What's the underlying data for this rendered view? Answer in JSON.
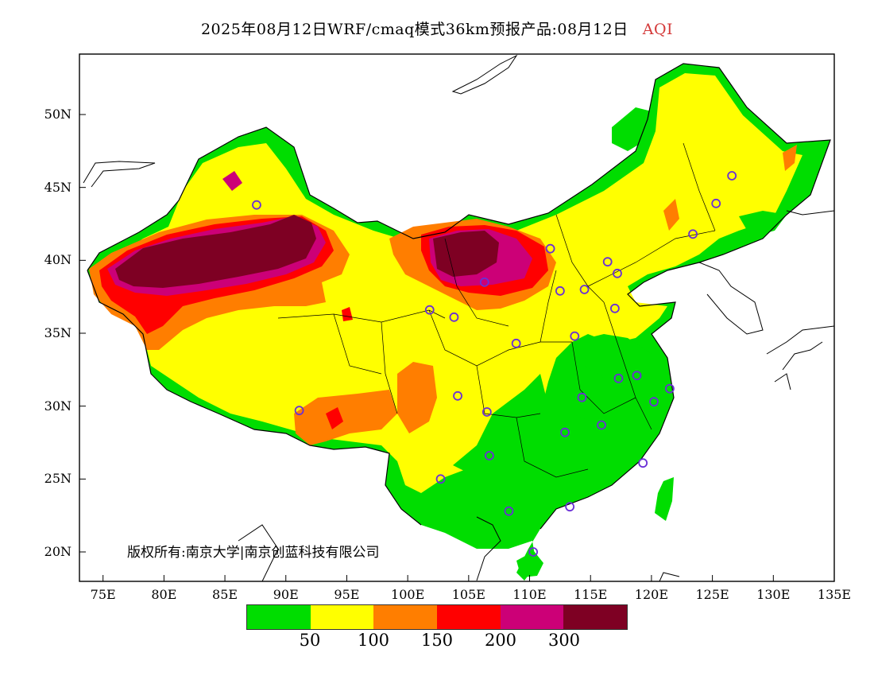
{
  "title": {
    "main": "2025年08月12日WRF/cmaq模式36km预报产品:08月12日",
    "variable": "AQI"
  },
  "copyright": "版权所有:南京大学|南京创蓝科技有限公司",
  "axes": {
    "lon_ticks": [
      "75E",
      "80E",
      "85E",
      "90E",
      "95E",
      "100E",
      "105E",
      "110E",
      "115E",
      "120E",
      "125E",
      "130E",
      "135E"
    ],
    "lat_ticks": [
      "50N",
      "45N",
      "40N",
      "35N",
      "30N",
      "25N",
      "20N"
    ],
    "lon_range": [
      73,
      135
    ],
    "lat_range": [
      18,
      54
    ]
  },
  "legend": {
    "colors": [
      "#00dd00",
      "#ffff00",
      "#ff7e00",
      "#ff0000",
      "#cc0077",
      "#7e0023"
    ],
    "labels": [
      "50",
      "100",
      "150",
      "200",
      "300"
    ]
  },
  "stations": [
    {
      "lon": 87.6,
      "lat": 43.8
    },
    {
      "lon": 91.1,
      "lat": 29.7
    },
    {
      "lon": 101.8,
      "lat": 36.6
    },
    {
      "lon": 103.8,
      "lat": 36.1
    },
    {
      "lon": 106.3,
      "lat": 38.5
    },
    {
      "lon": 111.7,
      "lat": 40.8
    },
    {
      "lon": 112.5,
      "lat": 37.9
    },
    {
      "lon": 114.5,
      "lat": 38.0
    },
    {
      "lon": 116.4,
      "lat": 39.9
    },
    {
      "lon": 117.2,
      "lat": 39.1
    },
    {
      "lon": 123.4,
      "lat": 41.8
    },
    {
      "lon": 125.3,
      "lat": 43.9
    },
    {
      "lon": 126.6,
      "lat": 45.8
    },
    {
      "lon": 117.0,
      "lat": 36.7
    },
    {
      "lon": 113.7,
      "lat": 34.8
    },
    {
      "lon": 108.9,
      "lat": 34.3
    },
    {
      "lon": 104.1,
      "lat": 30.7
    },
    {
      "lon": 106.5,
      "lat": 29.6
    },
    {
      "lon": 106.7,
      "lat": 26.6
    },
    {
      "lon": 102.7,
      "lat": 25.0
    },
    {
      "lon": 108.3,
      "lat": 22.8
    },
    {
      "lon": 113.3,
      "lat": 23.1
    },
    {
      "lon": 110.3,
      "lat": 20.0
    },
    {
      "lon": 112.9,
      "lat": 28.2
    },
    {
      "lon": 114.3,
      "lat": 30.6
    },
    {
      "lon": 115.9,
      "lat": 28.7
    },
    {
      "lon": 117.3,
      "lat": 31.9
    },
    {
      "lon": 118.8,
      "lat": 32.1
    },
    {
      "lon": 120.2,
      "lat": 30.3
    },
    {
      "lon": 121.5,
      "lat": 31.2
    },
    {
      "lon": 119.3,
      "lat": 26.1
    }
  ]
}
